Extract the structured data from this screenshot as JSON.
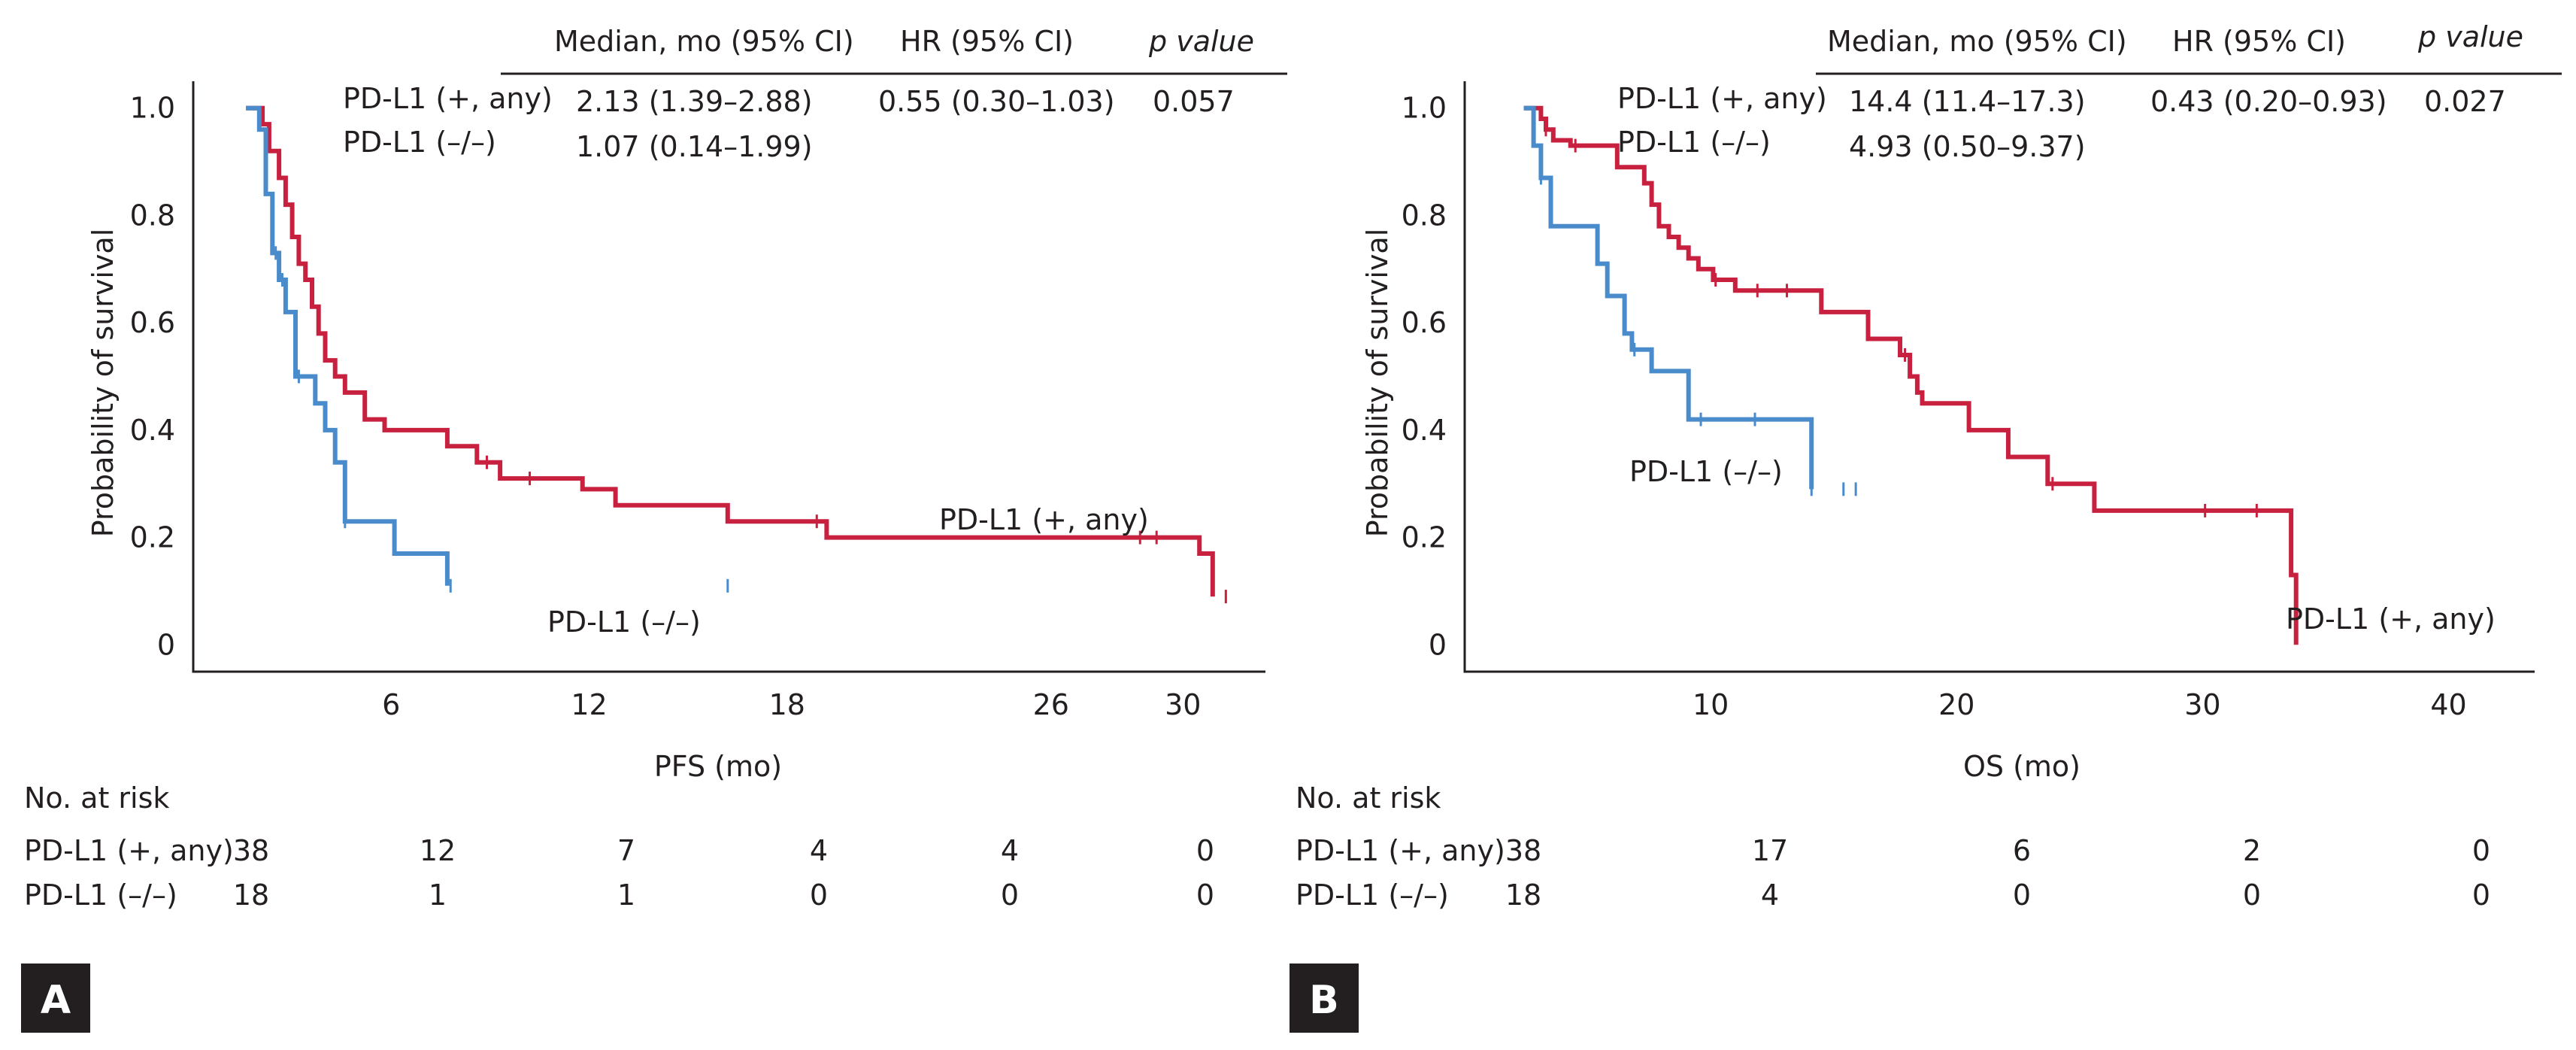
{
  "colors": {
    "pdl1_pos": "#c8203f",
    "pdl1_neg": "#4a8ccb",
    "ink": "#231f20"
  },
  "chart_data": [
    {
      "panel": "A",
      "type": "line",
      "subtype": "kaplan-meier",
      "xlabel": "PFS (mo)",
      "ylabel": "Probability of survival",
      "xticks": [
        6,
        12,
        18,
        26,
        30
      ],
      "yticks": [
        "0",
        "0.2",
        "0.4",
        "0.6",
        "0.8",
        "1.0"
      ],
      "xlim": [
        0,
        32.5
      ],
      "ylim": [
        -0.05,
        1.05
      ],
      "table_headers": [
        "Median, mo (95% CI)",
        "HR (95% CI)",
        "p value"
      ],
      "table_rows": [
        {
          "group": "PD-L1 (+, any)",
          "median": "2.13 (1.39–2.88)",
          "hr": "0.55 (0.30–1.03)",
          "p": "0.057"
        },
        {
          "group": "PD-L1 (–/–)",
          "median": "1.07 (0.14–1.99)",
          "hr": "",
          "p": ""
        }
      ],
      "series": [
        {
          "name": "PD-L1 (+, any)",
          "color": "#c8203f",
          "x": [
            1.6,
            2.1,
            2.3,
            2.6,
            2.8,
            3.0,
            3.2,
            3.4,
            3.6,
            3.8,
            4.0,
            4.3,
            4.6,
            5.2,
            5.8,
            7.7,
            8.6,
            9.3,
            11.8,
            12.8,
            16.2,
            19.2,
            30.5,
            30.9
          ],
          "y": [
            1.0,
            0.97,
            0.92,
            0.87,
            0.82,
            0.76,
            0.71,
            0.68,
            0.63,
            0.58,
            0.53,
            0.5,
            0.47,
            0.42,
            0.4,
            0.37,
            0.34,
            0.31,
            0.29,
            0.26,
            0.23,
            0.2,
            0.17,
            0.09
          ],
          "censored_x": [
            8.9,
            10.2,
            18.9,
            28.7,
            29.2,
            31.3
          ],
          "label": "PD-L1 (+, any)"
        },
        {
          "name": "PD-L1 (–/–)",
          "color": "#4a8ccb",
          "x": [
            1.6,
            2.0,
            2.2,
            2.4,
            2.6,
            2.8,
            3.1,
            3.7,
            4.0,
            4.3,
            4.6,
            6.1,
            7.7
          ],
          "y": [
            1.0,
            0.96,
            0.84,
            0.73,
            0.68,
            0.62,
            0.5,
            0.45,
            0.4,
            0.34,
            0.23,
            0.17,
            0.11
          ],
          "censored_x": [
            2.5,
            2.7,
            3.2,
            4.6,
            7.8,
            16.2
          ],
          "label": "PD-L1 (–/–)"
        }
      ],
      "risk_title": "No. at risk",
      "risk_rows": [
        {
          "label": "PD-L1 (+, any)",
          "values": [
            "38",
            "12",
            "7",
            "4",
            "4",
            "0"
          ]
        },
        {
          "label": "PD-L1 (–/–)",
          "values": [
            "18",
            "1",
            "1",
            "0",
            "0",
            "0"
          ]
        }
      ]
    },
    {
      "panel": "B",
      "type": "line",
      "subtype": "kaplan-meier",
      "xlabel": "OS (mo)",
      "ylabel": "Probability of survival",
      "xticks": [
        10,
        20,
        30,
        40
      ],
      "yticks": [
        "0",
        "0.2",
        "0.4",
        "0.6",
        "0.8",
        "1.0"
      ],
      "xlim": [
        0,
        43.5
      ],
      "ylim": [
        -0.05,
        1.05
      ],
      "table_headers": [
        "Median, mo (95% CI)",
        "HR (95% CI)",
        "p value"
      ],
      "table_rows": [
        {
          "group": "PD-L1 (+, any)",
          "median": "14.4 (11.4–17.3)",
          "hr": "0.43 (0.20–0.93)",
          "p": "0.027"
        },
        {
          "group": "PD-L1 (–/–)",
          "median": "4.93 (0.50–9.37)",
          "hr": "",
          "p": ""
        }
      ],
      "series": [
        {
          "name": "PD-L1 (+, any)",
          "color": "#c8203f",
          "x": [
            2.4,
            3.1,
            3.3,
            3.6,
            4.3,
            6.2,
            7.3,
            7.6,
            7.9,
            8.3,
            8.7,
            9.1,
            9.5,
            10.1,
            11.0,
            14.5,
            16.4,
            17.7,
            18.1,
            18.4,
            18.6,
            20.5,
            22.1,
            23.7,
            25.6,
            33.6,
            33.8
          ],
          "y": [
            1.0,
            0.98,
            0.96,
            0.94,
            0.93,
            0.89,
            0.86,
            0.82,
            0.78,
            0.76,
            0.74,
            0.72,
            0.7,
            0.68,
            0.66,
            0.62,
            0.57,
            0.54,
            0.5,
            0.47,
            0.45,
            0.4,
            0.35,
            0.3,
            0.25,
            0.13,
            0.0
          ],
          "censored_x": [
            3.3,
            4.5,
            10.2,
            11.9,
            13.1,
            17.9,
            23.9,
            30.1,
            32.2
          ],
          "label": "PD-L1 (+, any)"
        },
        {
          "name": "PD-L1 (–/–)",
          "color": "#4a8ccb",
          "x": [
            2.4,
            2.8,
            3.1,
            3.5,
            5.4,
            5.8,
            6.5,
            6.8,
            7.6,
            9.1,
            14.1
          ],
          "y": [
            1.0,
            0.93,
            0.87,
            0.78,
            0.71,
            0.65,
            0.58,
            0.55,
            0.51,
            0.42,
            0.29
          ],
          "censored_x": [
            3.1,
            6.9,
            9.6,
            11.8,
            14.1,
            15.4,
            15.9
          ],
          "label": "PD-L1 (–/–)"
        }
      ],
      "risk_title": "No. at risk",
      "risk_rows": [
        {
          "label": "PD-L1 (+, any)",
          "values": [
            "38",
            "17",
            "6",
            "2",
            "0"
          ]
        },
        {
          "label": "PD-L1 (–/–)",
          "values": [
            "18",
            "4",
            "0",
            "0",
            "0"
          ]
        }
      ]
    }
  ]
}
